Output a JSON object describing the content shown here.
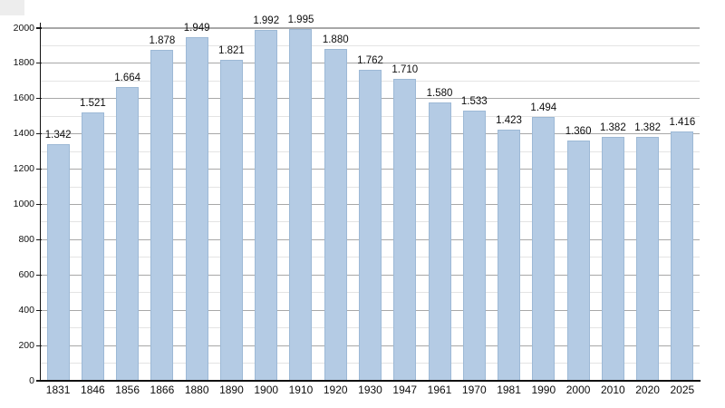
{
  "chart_data": {
    "type": "bar",
    "title": "",
    "xlabel": "",
    "ylabel": "",
    "categories": [
      "1831",
      "1846",
      "1856",
      "1866",
      "1880",
      "1890",
      "1900",
      "1910",
      "1920",
      "1930",
      "1947",
      "1961",
      "1970",
      "1981",
      "1990",
      "2000",
      "2010",
      "2020",
      "2025"
    ],
    "values": [
      1342,
      1521,
      1664,
      1878,
      1949,
      1821,
      1992,
      1995,
      1880,
      1762,
      1710,
      1580,
      1533,
      1423,
      1494,
      1360,
      1382,
      1382,
      1416
    ],
    "value_labels": [
      "1.342",
      "1.521",
      "1.664",
      "1.878",
      "1.949",
      "1.821",
      "1.992",
      "1.995",
      "1.880",
      "1.762",
      "1.710",
      "1.580",
      "1.533",
      "1.423",
      "1.494",
      "1.360",
      "1.382",
      "1.382",
      "1.416"
    ],
    "ylim": [
      0,
      2000
    ],
    "y_major_ticks": [
      0,
      200,
      400,
      600,
      800,
      1000,
      1200,
      1400,
      1600,
      1800,
      2000
    ],
    "y_major_tick_labels": [
      "0",
      "200",
      "400",
      "600",
      "800",
      "1000",
      "1200",
      "1400",
      "1600",
      "1800",
      "2000"
    ],
    "y_minor_step": 100,
    "grid": true,
    "legend": null,
    "colors": {
      "bar_fill": "#b4cbe4",
      "bar_border": "#9db9d6",
      "major_grid": "#a8a8a8",
      "minor_grid": "#e4e4e4",
      "axis": "#111111",
      "label_text": "#0d0d0d",
      "background": "#ffffff",
      "corner_artifact": "#ededed"
    }
  }
}
